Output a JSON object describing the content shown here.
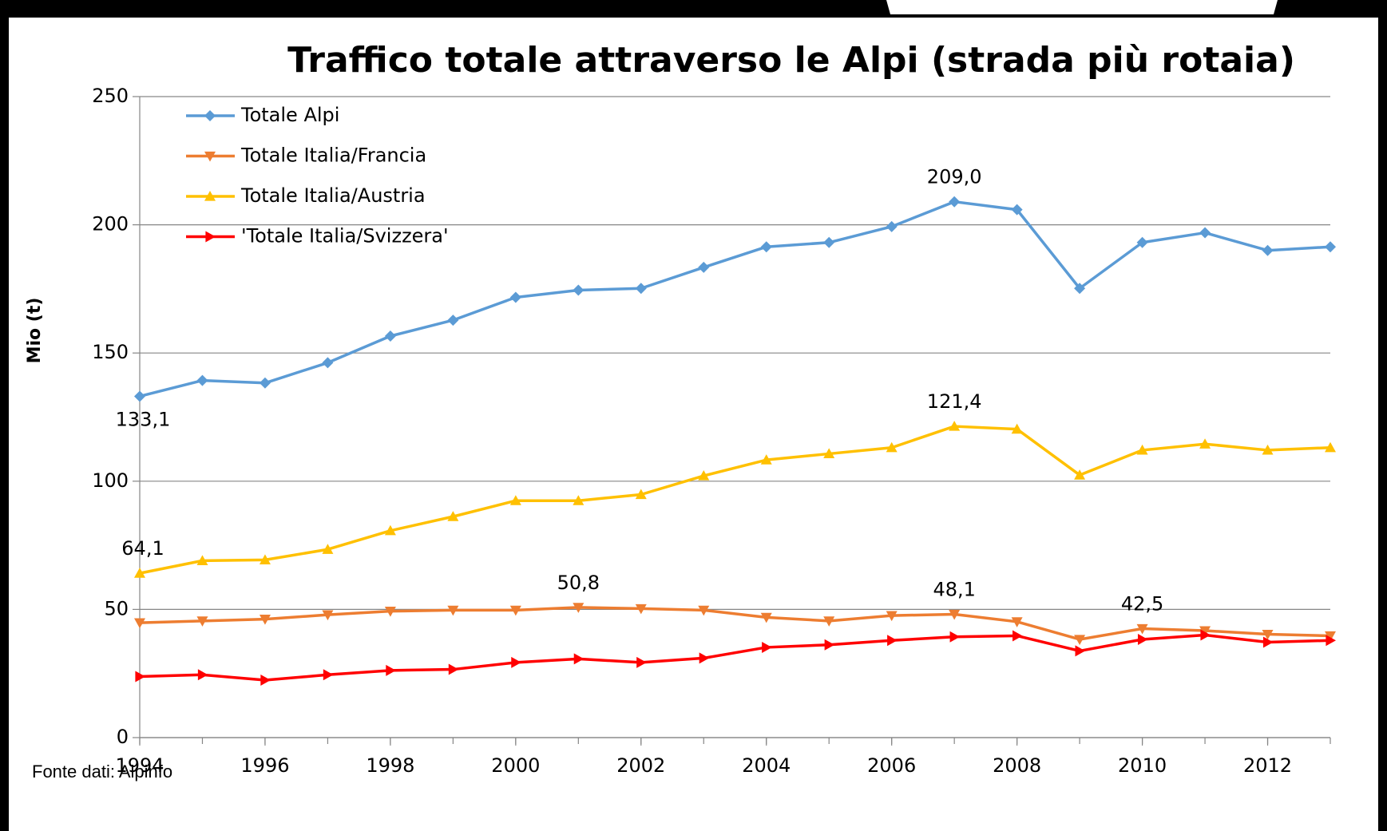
{
  "chart_data": {
    "type": "line",
    "title": "Traffico totale attraverso le Alpi (strada più rotaia)",
    "y_label": "Mio (t)",
    "source": "Fonte dati: Alpinfo",
    "x": [
      1994,
      1995,
      1996,
      1997,
      1998,
      1999,
      2000,
      2001,
      2002,
      2003,
      2004,
      2005,
      2006,
      2007,
      2008,
      2009,
      2010,
      2011,
      2012,
      2013
    ],
    "xlim": [
      1994,
      2013
    ],
    "xticks": [
      1994,
      1996,
      1998,
      2000,
      2002,
      2004,
      2006,
      2008,
      2010,
      2012
    ],
    "ylim": [
      0,
      250
    ],
    "yticks": [
      0,
      50,
      100,
      150,
      200,
      250
    ],
    "grid": true,
    "legend": "upper-left",
    "series": [
      {
        "name": "Totale Alpi",
        "color": "#5b9bd5",
        "marker": "diamond",
        "values": [
          133.1,
          139.3,
          138.3,
          146.2,
          156.6,
          162.8,
          171.7,
          174.5,
          175.2,
          183.4,
          191.4,
          193.1,
          199.3,
          209.0,
          205.9,
          175.2,
          193.1,
          196.9,
          190.0,
          191.4
        ],
        "value_labels": [
          "133,1",
          null,
          null,
          null,
          null,
          null,
          null,
          null,
          null,
          null,
          null,
          null,
          null,
          "209,0",
          null,
          null,
          null,
          null,
          null,
          null
        ]
      },
      {
        "name": "Totale Italia/Francia",
        "color": "#ed7d31",
        "marker": "triangle-down",
        "values": [
          44.8,
          45.5,
          46.2,
          47.9,
          49.3,
          49.7,
          49.7,
          50.8,
          50.3,
          49.7,
          46.9,
          45.5,
          47.6,
          48.1,
          45.2,
          38.3,
          42.5,
          41.7,
          40.3,
          39.7
        ],
        "value_labels": [
          null,
          null,
          null,
          null,
          null,
          null,
          null,
          "50,8",
          null,
          null,
          null,
          null,
          null,
          "48,1",
          null,
          null,
          "42,5",
          null,
          null,
          null
        ]
      },
      {
        "name": "Totale Italia/Austria",
        "color": "#ffc000",
        "marker": "triangle-up",
        "values": [
          64.1,
          69.0,
          69.3,
          73.4,
          80.7,
          86.2,
          92.4,
          92.4,
          94.8,
          102.1,
          108.3,
          110.7,
          113.1,
          121.4,
          120.3,
          102.4,
          112.1,
          114.5,
          112.1,
          113.1
        ],
        "value_labels": [
          "64,1",
          null,
          null,
          null,
          null,
          null,
          null,
          null,
          null,
          null,
          null,
          null,
          null,
          "121,4",
          null,
          null,
          null,
          null,
          null,
          null
        ]
      },
      {
        "name": "'Totale Italia/Svizzera'",
        "color": "#ff0000",
        "marker": "triangle-right",
        "values": [
          23.8,
          24.5,
          22.4,
          24.5,
          26.2,
          26.6,
          29.3,
          30.7,
          29.3,
          31.0,
          35.2,
          36.2,
          37.9,
          39.3,
          39.7,
          33.8,
          38.3,
          40.0,
          37.2,
          37.9
        ]
      }
    ]
  }
}
